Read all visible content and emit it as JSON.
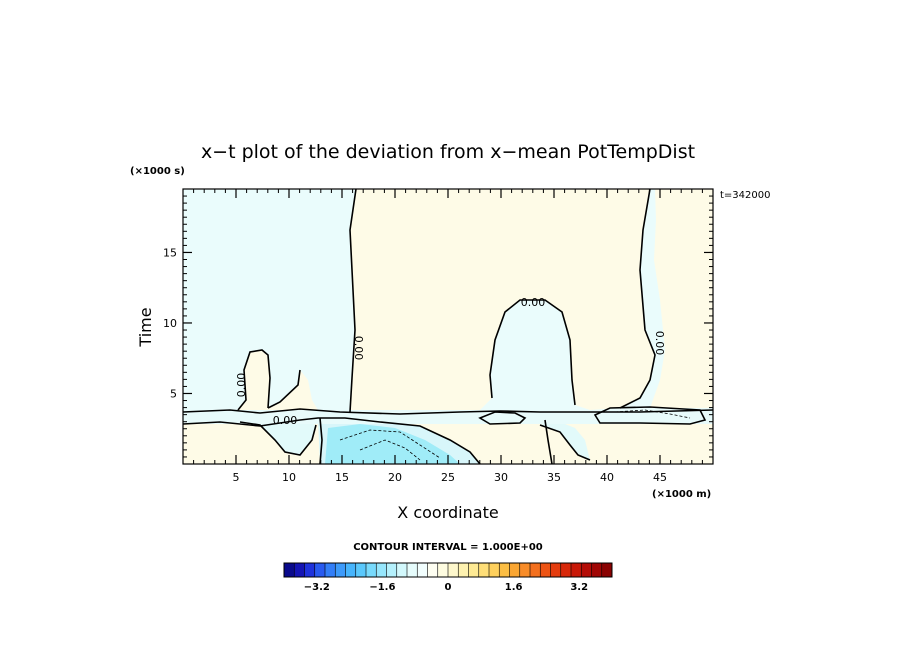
{
  "chart_data": {
    "type": "heatmap",
    "title": "x−t plot of the deviation from x−mean PotTempDist",
    "time_label": "t=342000",
    "xlabel": "X coordinate",
    "ylabel": "Time",
    "x_unit": "(×1000 m)",
    "y_unit": "(×1000 s)",
    "xlim": [
      0,
      50
    ],
    "ylim": [
      0,
      19.5
    ],
    "x_ticks": [
      5,
      10,
      15,
      20,
      25,
      30,
      35,
      40,
      45
    ],
    "y_ticks": [
      5,
      10,
      15
    ],
    "contour_label": "0.00",
    "contour_interval_text": "CONTOUR INTERVAL = 1.000E+00",
    "colorbar_ticks": [
      "−3.2",
      "−1.6",
      "0",
      "1.6",
      "3.2"
    ],
    "colorbar_range": [
      -4.0,
      4.0
    ],
    "colorbar_colors": [
      "#0a0a8c",
      "#1414b4",
      "#1e32dc",
      "#285af0",
      "#327ef8",
      "#3c9afa",
      "#46b4fc",
      "#5ac8fc",
      "#78dafc",
      "#96e6fc",
      "#b4f0fc",
      "#d2f8fc",
      "#e6fcfc",
      "#f2fefe",
      "#fefef2",
      "#fefce0",
      "#fef8cc",
      "#fef2b0",
      "#feea94",
      "#fede78",
      "#fed05c",
      "#fcbe44",
      "#faa632",
      "#f88c28",
      "#f4701e",
      "#ee5414",
      "#e43c0e",
      "#d8280a",
      "#c81808",
      "#b40c06",
      "#a00604",
      "#8a0202"
    ],
    "regions": [
      {
        "label": "positive",
        "color": "#fefbe7"
      },
      {
        "label": "negative",
        "color": "#eafcfc"
      },
      {
        "label": "strong-negative",
        "color": "#a0ecf8"
      }
    ]
  }
}
